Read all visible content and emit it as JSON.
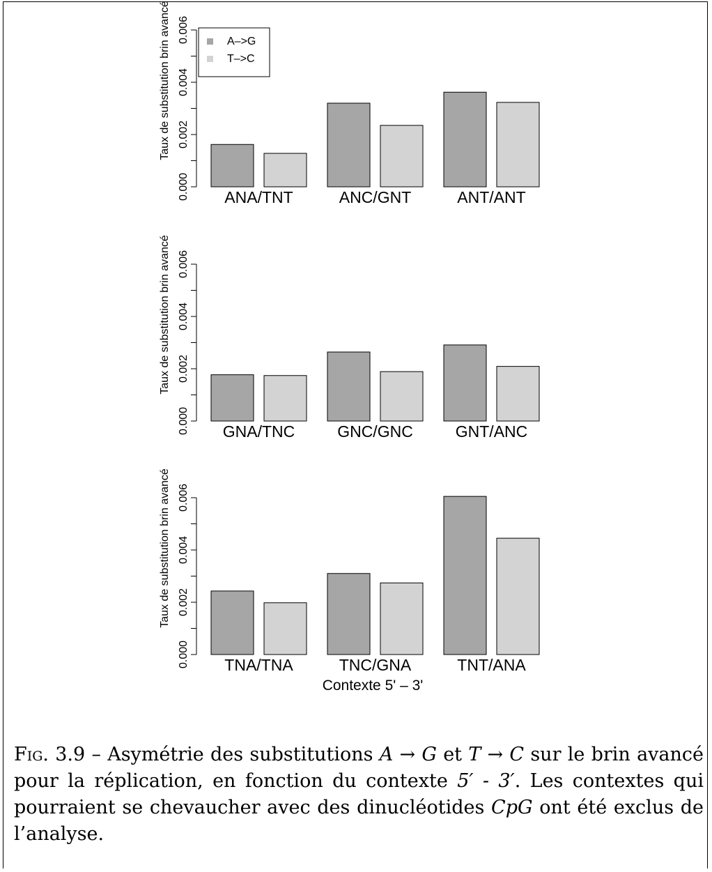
{
  "chart_data": {
    "type": "bar",
    "ylabel": "Taux de substitution brin avancé",
    "xlabel": "Contexte 5' – 3'",
    "ylim": [
      0,
      0.006
    ],
    "yticks": [
      "0.000",
      "0.002",
      "0.004",
      "0.006"
    ],
    "legend": {
      "placement": "top-left",
      "entries": [
        {
          "name": "A–>G",
          "color": "#a6a6a6"
        },
        {
          "name": "T–>C",
          "color": "#d3d3d3"
        }
      ]
    },
    "panels": [
      {
        "categories": [
          "ANA/TNT",
          "ANC/GNT",
          "ANT/ANT"
        ],
        "series": [
          {
            "name": "A–>G",
            "values": [
              0.00162,
              0.0032,
              0.00362
            ]
          },
          {
            "name": "T–>C",
            "values": [
              0.00128,
              0.00235,
              0.00323
            ]
          }
        ]
      },
      {
        "categories": [
          "GNA/TNC",
          "GNC/GNC",
          "GNT/ANC"
        ],
        "series": [
          {
            "name": "A–>G",
            "values": [
              0.00177,
              0.00264,
              0.00291
            ]
          },
          {
            "name": "T–>C",
            "values": [
              0.00174,
              0.00189,
              0.00209
            ]
          }
        ]
      },
      {
        "categories": [
          "TNA/TNA",
          "TNC/GNA",
          "TNT/ANA"
        ],
        "series": [
          {
            "name": "A–>G",
            "values": [
              0.00243,
              0.0031,
              0.00605
            ]
          },
          {
            "name": "T–>C",
            "values": [
              0.00198,
              0.00274,
              0.00445
            ]
          }
        ]
      }
    ]
  },
  "caption": {
    "prefix": "Fig. 3.9",
    "text_1": " – Asymétrie des substitutions ",
    "math_1": "A → G",
    "text_2": " et ",
    "math_2": "T → C",
    "text_3": " sur le brin avancé pour la réplication, en fonction du contexte ",
    "math_3": "5′ - 3′",
    "text_4": ". Les contextes qui pourraient se chevaucher avec des dinucléotides ",
    "math_4": "CpG",
    "text_5": " ont été exclus de l’analyse."
  }
}
